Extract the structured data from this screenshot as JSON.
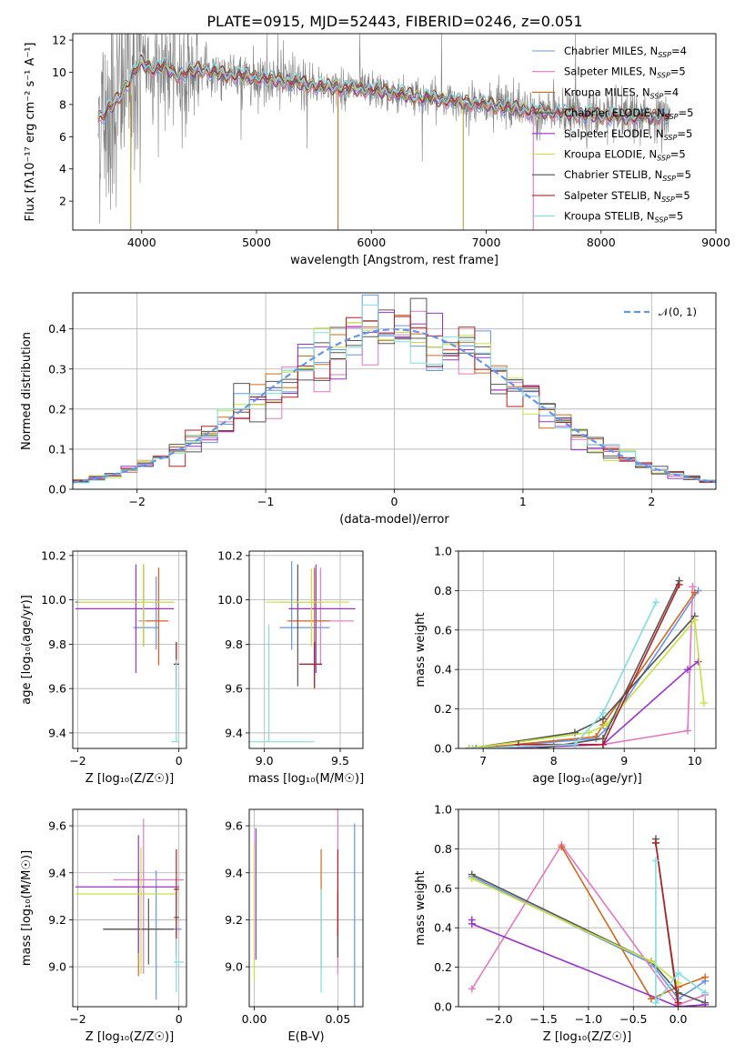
{
  "figure_title": "PLATE=0915, MJD=52443, FIBERID=0246, z=0.051",
  "model_colors": [
    "#6495ed",
    "#e377c2",
    "#d2691e",
    "#555555",
    "#9932cc",
    "#c8e040",
    "#555555",
    "#b22222",
    "#7fdfdf"
  ],
  "chart_data": [
    {
      "id": "spectrum",
      "type": "line",
      "title": "PLATE=0915, MJD=52443, FIBERID=0246, z=0.051",
      "xlabel": "wavelength [Angstrom, rest frame]",
      "ylabel": "Flux [fλ10⁻¹⁷ erg cm⁻² s⁻¹ A⁻¹]",
      "xlim": [
        3400,
        9000
      ],
      "ylim": [
        0.2,
        12.4
      ],
      "xticks": [
        4000,
        5000,
        6000,
        7000,
        8000,
        9000
      ],
      "yticks": [
        2,
        4,
        6,
        8,
        10,
        12
      ],
      "legend_position": "upper-right",
      "legend": [
        "Chabrier MILES, N_SSP=4",
        "Salpeter MILES, N_SSP=5",
        "Kroupa MILES, N_SSP=4",
        "Chabrier ELODIE, N_SSP=5",
        "Salpeter ELODIE, N_SSP=5",
        "Kroupa ELODIE, N_SSP=5",
        "Chabrier STELIB, N_SSP=5",
        "Salpeter STELIB, N_SSP=5",
        "Kroupa STELIB, N_SSP=5"
      ],
      "model_anchor_x": [
        3650,
        3700,
        3800,
        3900,
        4000,
        4100,
        4200,
        4300,
        4400,
        4500,
        4700,
        5000,
        5300,
        5600,
        6000,
        6300,
        6600,
        7000,
        7400,
        7800,
        8200,
        8600
      ],
      "model_anchor_y": [
        7.2,
        7.6,
        8.4,
        9.6,
        10.6,
        10.2,
        10.4,
        9.8,
        10.0,
        10.2,
        9.9,
        9.7,
        9.4,
        9.1,
        8.9,
        8.6,
        8.3,
        8.0,
        7.6,
        7.4,
        7.2,
        7.3
      ]
    },
    {
      "id": "residual-histogram",
      "type": "step",
      "xlabel": "(data-model)/error",
      "ylabel": "Normed distribution",
      "xlim": [
        -2.5,
        2.5
      ],
      "ylim": [
        0,
        0.49
      ],
      "xticks": [
        -2,
        -1,
        0,
        1,
        2
      ],
      "yticks": [
        0.0,
        0.1,
        0.2,
        0.3,
        0.4
      ],
      "grid": true,
      "legend": [
        "𝒩(0, 1)"
      ],
      "legend_position": "upper-right",
      "bins": 40,
      "reference_curve": {
        "mean": 0,
        "sigma": 1,
        "color": "#6495ed",
        "style": "dashed"
      }
    },
    {
      "id": "age-vs-Z",
      "type": "errorbar",
      "xlabel": "Z [log₁₀(Z/Z☉)]",
      "ylabel": "age  [log₁₀(age/yr)]",
      "xlim": [
        -2.1,
        0.15
      ],
      "ylim": [
        9.33,
        10.22
      ],
      "xticks": [
        -2,
        0
      ],
      "yticks": [
        9.4,
        9.6,
        9.8,
        10.0,
        10.2
      ],
      "grid": true,
      "points": [
        {
          "x": -0.45,
          "xerr": [
            0.45,
            0.05
          ],
          "y": 9.875,
          "yerr": [
            0.1,
            0.23
          ],
          "c": 0
        },
        {
          "x": -0.4,
          "xerr": [
            0.4,
            0.2
          ],
          "y": 9.905,
          "yerr": [
            0.2,
            0.24
          ],
          "c": 1
        },
        {
          "x": -0.4,
          "xerr": [
            0.25,
            0.18
          ],
          "y": 9.905,
          "yerr": [
            0.2,
            0.24
          ],
          "c": 2
        },
        {
          "x": -0.7,
          "xerr": [
            1.35,
            0.6
          ],
          "y": 9.99,
          "yerr": [
            0.2,
            0.17
          ],
          "c": 3
        },
        {
          "x": -0.85,
          "xerr": [
            1.2,
            0.75
          ],
          "y": 9.96,
          "yerr": [
            0.29,
            0.2
          ],
          "c": 4
        },
        {
          "x": -0.7,
          "xerr": [
            1.3,
            0.6
          ],
          "y": 9.99,
          "yerr": [
            0.2,
            0.17
          ],
          "c": 5
        },
        {
          "x": -0.05,
          "xerr": [
            0.05,
            0.05
          ],
          "y": 9.71,
          "yerr": [
            0.1,
            0.1
          ],
          "c": 6
        },
        {
          "x": -0.05,
          "xerr": [
            0.05,
            0.05
          ],
          "y": 9.71,
          "yerr": [
            0.11,
            0.1
          ],
          "c": 7
        },
        {
          "x": -0.05,
          "xerr": [
            0.1,
            0.05
          ],
          "y": 9.36,
          "yerr": [
            0.0,
            0.37
          ],
          "c": 8
        }
      ]
    },
    {
      "id": "age-vs-mass",
      "type": "errorbar",
      "xlabel": "mass [log₁₀(M/M☉)]",
      "ylabel": "",
      "xlim": [
        8.9,
        9.65
      ],
      "ylim": [
        9.33,
        10.22
      ],
      "xticks": [
        9.0,
        9.5
      ],
      "yticks": [
        9.4,
        9.6,
        9.8,
        10.0,
        10.2
      ],
      "grid": true,
      "points": [
        {
          "x": 9.18,
          "xerr": [
            0.08,
            0.25
          ],
          "y": 9.875,
          "yerr": [
            0.1,
            0.3
          ],
          "c": 0
        },
        {
          "x": 9.37,
          "xerr": [
            0.2,
            0.22
          ],
          "y": 9.905,
          "yerr": [
            0.2,
            0.24
          ],
          "c": 1
        },
        {
          "x": 9.33,
          "xerr": [
            0.18,
            0.1
          ],
          "y": 9.905,
          "yerr": [
            0.2,
            0.24
          ],
          "c": 2
        },
        {
          "x": 9.22,
          "xerr": [
            0.12,
            0.17
          ],
          "y": 9.99,
          "yerr": [
            0.38,
            0.17
          ],
          "c": 3
        },
        {
          "x": 9.34,
          "xerr": [
            0.18,
            0.26
          ],
          "y": 9.96,
          "yerr": [
            0.29,
            0.2
          ],
          "c": 4
        },
        {
          "x": 9.31,
          "xerr": [
            0.3,
            0.25
          ],
          "y": 9.99,
          "yerr": [
            0.2,
            0.15
          ],
          "c": 5
        },
        {
          "x": 9.33,
          "xerr": [
            0.1,
            0.05
          ],
          "y": 9.71,
          "yerr": [
            0.1,
            0.1
          ],
          "c": 6
        },
        {
          "x": 9.33,
          "xerr": [
            0.1,
            0.05
          ],
          "y": 9.71,
          "yerr": [
            0.11,
            0.1
          ],
          "c": 7
        },
        {
          "x": 9.03,
          "xerr": [
            0.13,
            0.3
          ],
          "y": 9.36,
          "yerr": [
            0.0,
            0.53
          ],
          "c": 8
        }
      ]
    },
    {
      "id": "weight-vs-age",
      "type": "line",
      "xlabel": "age  [log₁₀(age/yr)]",
      "ylabel": "mass weight",
      "xlim": [
        6.65,
        10.3
      ],
      "ylim": [
        0,
        1.0
      ],
      "xticks": [
        7,
        8,
        9,
        10
      ],
      "yticks": [
        0.0,
        0.2,
        0.4,
        0.6,
        0.8,
        1.0
      ],
      "grid": true,
      "series": [
        {
          "c": 0,
          "x": [
            6.85,
            8.6,
            8.75,
            10.05
          ],
          "y": [
            0.0,
            0.05,
            0.1,
            0.8
          ]
        },
        {
          "c": 1,
          "x": [
            6.8,
            8.7,
            9.9,
            9.97
          ],
          "y": [
            0.0,
            0.02,
            0.09,
            0.82
          ]
        },
        {
          "c": 2,
          "x": [
            6.9,
            8.6,
            8.7,
            10.0
          ],
          "y": [
            0.0,
            0.06,
            0.12,
            0.79
          ]
        },
        {
          "c": 3,
          "x": [
            6.8,
            8.3,
            8.7,
            10.0
          ],
          "y": [
            0.0,
            0.08,
            0.15,
            0.67
          ]
        },
        {
          "c": 4,
          "x": [
            7.2,
            8.0,
            8.7,
            9.9,
            10.05
          ],
          "y": [
            0.0,
            0.01,
            0.02,
            0.4,
            0.44
          ]
        },
        {
          "c": 5,
          "x": [
            6.8,
            8.5,
            8.75,
            10.0,
            10.13
          ],
          "y": [
            0.0,
            0.08,
            0.12,
            0.65,
            0.23
          ]
        },
        {
          "c": 6,
          "x": [
            7.8,
            8.7,
            9.78
          ],
          "y": [
            0.0,
            0.05,
            0.85
          ]
        },
        {
          "c": 7,
          "x": [
            7.5,
            8.7,
            9.78
          ],
          "y": [
            0.02,
            0.02,
            0.83
          ]
        },
        {
          "c": 8,
          "x": [
            6.85,
            8.3,
            8.7,
            9.45
          ],
          "y": [
            0.0,
            0.02,
            0.18,
            0.74
          ]
        }
      ]
    },
    {
      "id": "mass-vs-Z",
      "type": "errorbar",
      "xlabel": "Z [log₁₀(Z/Z☉)]",
      "ylabel": "mass [log₁₀(M/M☉)]",
      "xlim": [
        -2.1,
        0.15
      ],
      "ylim": [
        8.83,
        9.67
      ],
      "xticks": [
        -2,
        0
      ],
      "yticks": [
        9.0,
        9.2,
        9.4,
        9.6
      ],
      "grid": true,
      "points": [
        {
          "x": -0.45,
          "xerr": [
            1.05,
            0.5
          ],
          "y": 9.16,
          "yerr": [
            0.3,
            0.25
          ],
          "c": 0
        },
        {
          "x": -0.7,
          "xerr": [
            0.6,
            0.8
          ],
          "y": 9.37,
          "yerr": [
            0.4,
            0.26
          ],
          "c": 1
        },
        {
          "x": -0.8,
          "xerr": [
            0.65,
            0.45
          ],
          "y": 9.16,
          "yerr": [
            0.2,
            0.25
          ],
          "c": 2
        },
        {
          "x": -0.6,
          "xerr": [
            0.9,
            0.5
          ],
          "y": 9.16,
          "yerr": [
            0.15,
            0.13
          ],
          "c": 3
        },
        {
          "x": -0.8,
          "xerr": [
            1.25,
            0.8
          ],
          "y": 9.34,
          "yerr": [
            0.28,
            0.22
          ],
          "c": 4
        },
        {
          "x": -0.75,
          "xerr": [
            1.3,
            0.7
          ],
          "y": 9.31,
          "yerr": [
            0.34,
            0.2
          ],
          "c": 5
        },
        {
          "x": -0.05,
          "xerr": [
            0.05,
            0.05
          ],
          "y": 9.21,
          "yerr": [
            0.17,
            0.12
          ],
          "c": 6
        },
        {
          "x": -0.05,
          "xerr": [
            0.05,
            0.05
          ],
          "y": 9.33,
          "yerr": [
            0.27,
            0.17
          ],
          "c": 7
        },
        {
          "x": -0.05,
          "xerr": [
            0.05,
            0.15
          ],
          "y": 9.02,
          "yerr": [
            0.13,
            0.1
          ],
          "c": 8
        }
      ]
    },
    {
      "id": "mass-vs-EBV",
      "type": "errorbar",
      "xlabel": "E(B-V)",
      "ylabel": "",
      "xlim": [
        -0.003,
        0.065
      ],
      "ylim": [
        8.83,
        9.67
      ],
      "xticks": [
        0.0,
        0.05
      ],
      "xtick_labels": [
        "0.00",
        "0.05"
      ],
      "yticks": [
        9.0,
        9.2,
        9.4,
        9.6
      ],
      "grid": true,
      "points": [
        {
          "x": 0.06,
          "y": 9.16,
          "yerr": [
            0.35,
            0.45
          ],
          "c": 0
        },
        {
          "x": 0.05,
          "y": 9.37,
          "yerr": [
            0.4,
            0.3
          ],
          "c": 1
        },
        {
          "x": 0.04,
          "y": 9.16,
          "yerr": [
            0.17,
            0.34
          ],
          "c": 2
        },
        {
          "x": 0.05,
          "y": 9.21,
          "yerr": [
            0.17,
            0.12
          ],
          "c": 3
        },
        {
          "x": 0.001,
          "y": 9.34,
          "yerr": [
            0.31,
            0.25
          ],
          "c": 4
        },
        {
          "x": 0.0,
          "y": 9.31,
          "yerr": [
            0.37,
            0.22
          ],
          "c": 5
        },
        {
          "x": 0.05,
          "y": 9.21,
          "yerr": [
            0.17,
            0.1
          ],
          "c": 6
        },
        {
          "x": 0.05,
          "y": 9.33,
          "yerr": [
            0.2,
            0.17
          ],
          "c": 7
        },
        {
          "x": 0.04,
          "y": 9.02,
          "yerr": [
            0.13,
            0.31
          ],
          "c": 8
        }
      ]
    },
    {
      "id": "weight-vs-Z",
      "type": "line",
      "xlabel": "Z [log₁₀(Z/Z☉)]",
      "ylabel": "mass weight",
      "xlim": [
        -2.45,
        0.42
      ],
      "ylim": [
        0,
        1.0
      ],
      "xticks": [
        -2.0,
        -1.5,
        -1.0,
        -0.5,
        0.0
      ],
      "xtick_labels": [
        "−2.0",
        "−1.5",
        "−1.0",
        "−0.5",
        "0.0"
      ],
      "yticks": [
        0.0,
        0.2,
        0.4,
        0.6,
        0.8,
        1.0
      ],
      "grid": true,
      "series": [
        {
          "c": 0,
          "x": [
            -2.3,
            -0.3,
            0.0,
            0.3
          ],
          "y": [
            0.66,
            0.22,
            0.04,
            0.13
          ]
        },
        {
          "c": 1,
          "x": [
            -2.3,
            -1.3,
            0.0,
            0.3
          ],
          "y": [
            0.09,
            0.82,
            0.01,
            0.06
          ]
        },
        {
          "c": 2,
          "x": [
            -1.3,
            -0.3,
            0.0,
            0.3
          ],
          "y": [
            0.81,
            0.04,
            0.1,
            0.15
          ]
        },
        {
          "c": 3,
          "x": [
            -2.3,
            -0.3,
            0.0,
            0.3
          ],
          "y": [
            0.67,
            0.23,
            0.07,
            0.02
          ]
        },
        {
          "c": 4,
          "x": [
            -2.3,
            -2.3,
            0.0,
            0.3
          ],
          "y": [
            0.44,
            0.42,
            0.0,
            0.01
          ]
        },
        {
          "c": 5,
          "x": [
            -2.3,
            -0.3,
            0.0
          ],
          "y": [
            0.65,
            0.23,
            0.12
          ]
        },
        {
          "c": 6,
          "x": [
            -0.25,
            -0.25,
            0.0
          ],
          "y": [
            0.85,
            0.83,
            0.0
          ]
        },
        {
          "c": 7,
          "x": [
            -0.25,
            0.0
          ],
          "y": [
            0.83,
            0.02
          ]
        },
        {
          "c": 8,
          "x": [
            -0.25,
            -0.25,
            0.0,
            0.3
          ],
          "y": [
            0.74,
            0.02,
            0.17,
            0.07
          ]
        }
      ]
    }
  ]
}
